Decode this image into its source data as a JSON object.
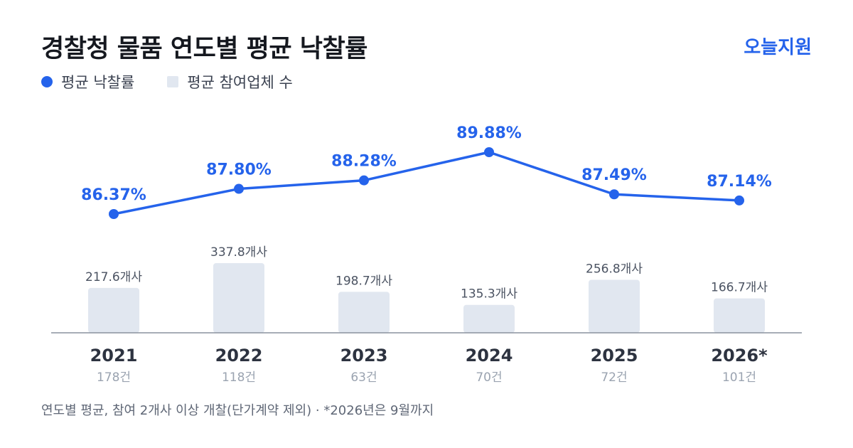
{
  "title": "경찰청 물품 연도별 평균 낙찰률",
  "brand": "오늘지원",
  "legend": {
    "rate_label": "평균 낙찰률",
    "bidders_label": "평균 참여업체 수"
  },
  "colors": {
    "line": "#2563eb",
    "bar": "#e1e7f0",
    "axis": "#8a929e",
    "year_text": "#2d3340",
    "count_text": "#9aa3b0",
    "bar_label_text": "#4a5261"
  },
  "chart_data": {
    "type": "bar+line",
    "categories": [
      "2021",
      "2022",
      "2023",
      "2024",
      "2025",
      "2026*"
    ],
    "counts": [
      "178건",
      "118건",
      "63건",
      "70건",
      "72건",
      "101건"
    ],
    "series": [
      {
        "name": "평균 낙찰률",
        "type": "line",
        "values": [
          86.37,
          87.8,
          88.28,
          89.88,
          87.49,
          87.14
        ],
        "labels": [
          "86.37%",
          "87.80%",
          "88.28%",
          "89.88%",
          "87.49%",
          "87.14%"
        ]
      },
      {
        "name": "평균 참여업체 수",
        "type": "bar",
        "values": [
          217.6,
          337.8,
          198.7,
          135.3,
          256.8,
          166.7
        ],
        "labels": [
          "217.6개사",
          "337.8개사",
          "198.7개사",
          "135.3개사",
          "256.8개사",
          "166.7개사"
        ]
      }
    ]
  },
  "footnote": "연도별 평균, 참여 2개사 이상 개찰(단가계약 제외) · *2026년은 9월까지"
}
